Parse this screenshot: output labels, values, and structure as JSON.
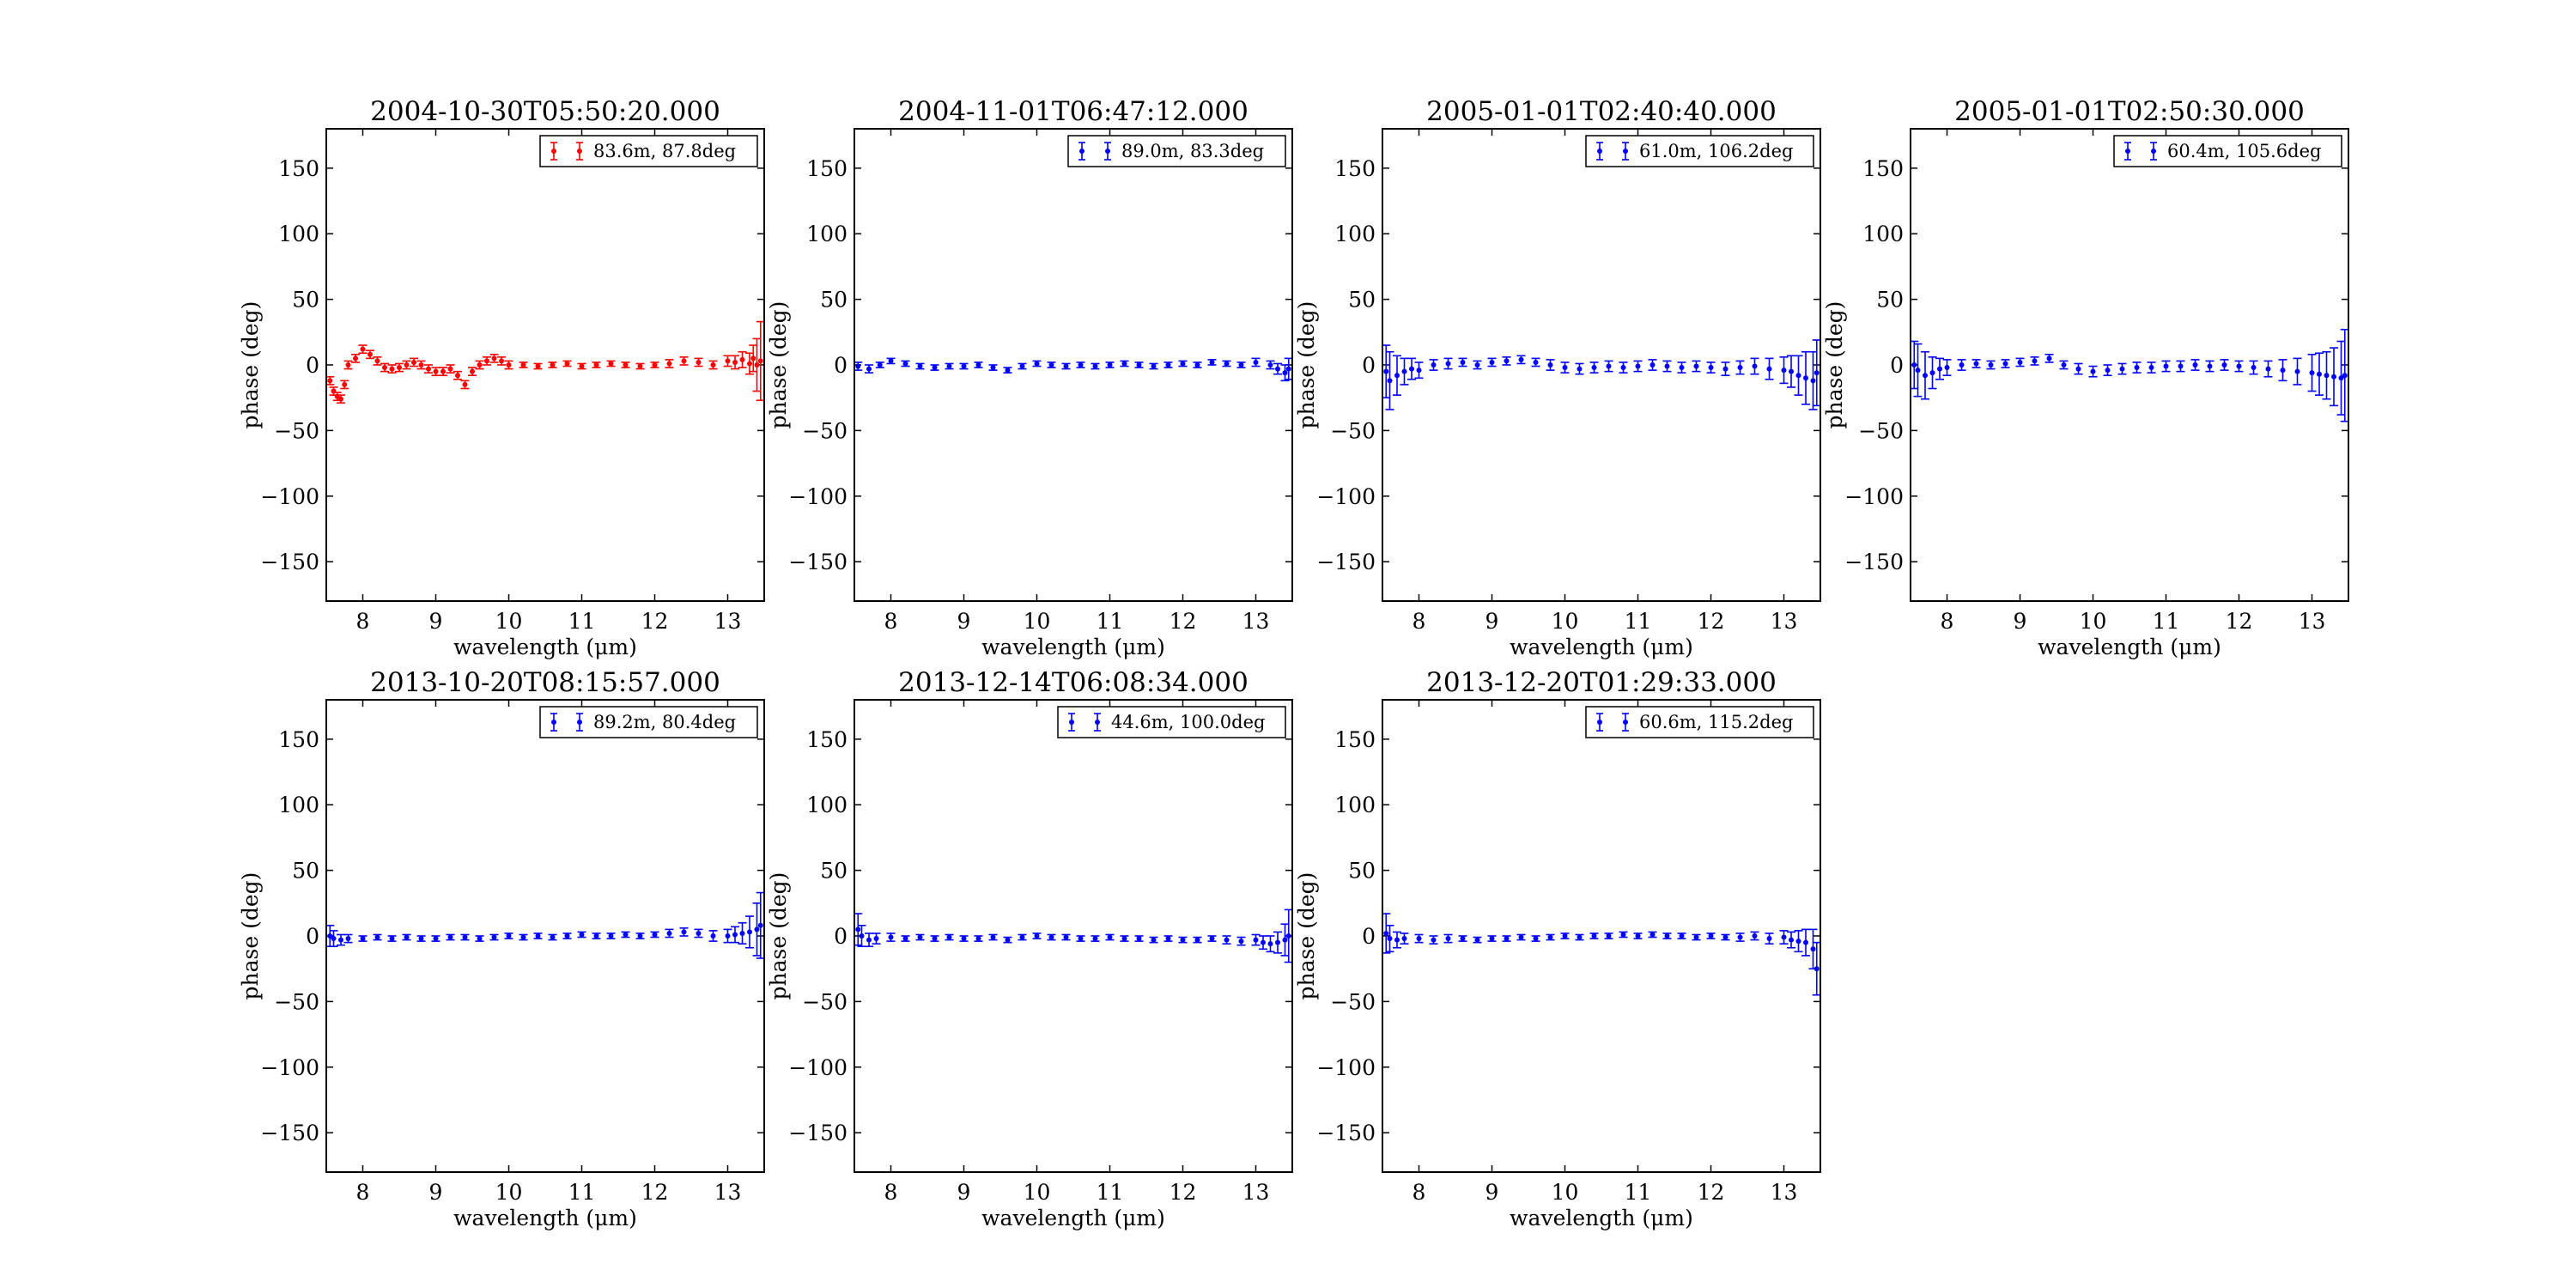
{
  "chart_data": [
    {
      "type": "scatter",
      "title": "2004-10-30T05:50:20.000",
      "xlabel": "wavelength (μm)",
      "ylabel": "phase (deg)",
      "xlim": [
        7.5,
        13.5
      ],
      "ylim": [
        -180,
        180
      ],
      "xticks": [
        8,
        9,
        10,
        11,
        12,
        13
      ],
      "yticks": [
        -150,
        -100,
        -50,
        0,
        50,
        100,
        150
      ],
      "legend_position": "top-right",
      "series": [
        {
          "name": "83.6m, 87.8deg",
          "color": "#ff0000",
          "x": [
            7.55,
            7.6,
            7.65,
            7.7,
            7.75,
            7.8,
            7.9,
            8.0,
            8.1,
            8.2,
            8.3,
            8.4,
            8.5,
            8.6,
            8.7,
            8.8,
            8.9,
            9.0,
            9.1,
            9.2,
            9.3,
            9.4,
            9.5,
            9.6,
            9.7,
            9.8,
            9.9,
            10.0,
            10.2,
            10.4,
            10.6,
            10.8,
            11.0,
            11.2,
            11.4,
            11.6,
            11.8,
            12.0,
            12.2,
            12.4,
            12.6,
            12.8,
            13.0,
            13.1,
            13.2,
            13.3,
            13.35,
            13.4,
            13.45
          ],
          "y": [
            -12,
            -20,
            -24,
            -26,
            -15,
            0,
            5,
            12,
            8,
            3,
            -2,
            -3,
            -2,
            0,
            2,
            0,
            -3,
            -5,
            -5,
            -3,
            -8,
            -15,
            -5,
            0,
            3,
            5,
            3,
            0,
            0,
            -1,
            0,
            1,
            -1,
            0,
            1,
            0,
            -1,
            0,
            1,
            3,
            2,
            0,
            3,
            2,
            4,
            1,
            5,
            0,
            3
          ],
          "err": [
            3,
            3,
            3,
            3,
            3,
            3,
            3,
            3,
            3,
            3,
            3,
            3,
            3,
            3,
            3,
            3,
            3,
            3,
            3,
            3,
            3,
            3,
            3,
            3,
            3,
            3,
            3,
            3,
            2,
            2,
            2,
            2,
            2,
            2,
            2,
            2,
            2,
            2,
            3,
            3,
            3,
            3,
            4,
            5,
            6,
            8,
            10,
            20,
            30
          ]
        }
      ]
    },
    {
      "type": "scatter",
      "title": "2004-11-01T06:47:12.000",
      "xlabel": "wavelength (μm)",
      "ylabel": "phase (deg)",
      "xlim": [
        7.5,
        13.5
      ],
      "ylim": [
        -180,
        180
      ],
      "xticks": [
        8,
        9,
        10,
        11,
        12,
        13
      ],
      "yticks": [
        -150,
        -100,
        -50,
        0,
        50,
        100,
        150
      ],
      "legend_position": "top-right",
      "series": [
        {
          "name": "89.0m, 83.3deg",
          "color": "#0000ff",
          "x": [
            7.55,
            7.7,
            7.85,
            8.0,
            8.2,
            8.4,
            8.6,
            8.8,
            9.0,
            9.2,
            9.4,
            9.6,
            9.8,
            10.0,
            10.2,
            10.4,
            10.6,
            10.8,
            11.0,
            11.2,
            11.4,
            11.6,
            11.8,
            12.0,
            12.2,
            12.4,
            12.6,
            12.8,
            13.0,
            13.2,
            13.3,
            13.4,
            13.45
          ],
          "y": [
            -1,
            -3,
            0,
            3,
            1,
            -1,
            -2,
            -1,
            -1,
            0,
            -2,
            -4,
            -1,
            1,
            0,
            -1,
            0,
            -1,
            0,
            1,
            0,
            -1,
            0,
            1,
            0,
            2,
            1,
            0,
            2,
            0,
            -3,
            -6,
            -3
          ],
          "err": [
            3,
            3,
            2,
            2,
            2,
            2,
            2,
            2,
            2,
            2,
            2,
            2,
            2,
            2,
            2,
            2,
            2,
            2,
            2,
            2,
            2,
            2,
            2,
            2,
            2,
            2,
            2,
            2,
            3,
            3,
            4,
            6,
            8
          ]
        }
      ]
    },
    {
      "type": "scatter",
      "title": "2005-01-01T02:40:40.000",
      "xlabel": "wavelength (μm)",
      "ylabel": "phase (deg)",
      "xlim": [
        7.5,
        13.5
      ],
      "ylim": [
        -180,
        180
      ],
      "xticks": [
        8,
        9,
        10,
        11,
        12,
        13
      ],
      "yticks": [
        -150,
        -100,
        -50,
        0,
        50,
        100,
        150
      ],
      "legend_position": "top-right",
      "series": [
        {
          "name": "61.0m, 106.2deg",
          "color": "#0000ff",
          "x": [
            7.55,
            7.6,
            7.7,
            7.8,
            7.9,
            8.0,
            8.2,
            8.4,
            8.6,
            8.8,
            9.0,
            9.2,
            9.4,
            9.6,
            9.8,
            10.0,
            10.2,
            10.4,
            10.6,
            10.8,
            11.0,
            11.2,
            11.4,
            11.6,
            11.8,
            12.0,
            12.2,
            12.4,
            12.6,
            12.8,
            13.0,
            13.1,
            13.2,
            13.3,
            13.4,
            13.45
          ],
          "y": [
            -5,
            -12,
            -8,
            -5,
            -3,
            -4,
            0,
            1,
            2,
            0,
            2,
            3,
            4,
            2,
            0,
            -2,
            -3,
            -2,
            -1,
            -2,
            -1,
            0,
            -1,
            -2,
            -1,
            -2,
            -3,
            -2,
            -1,
            -3,
            -4,
            -5,
            -8,
            -10,
            -12,
            -6
          ],
          "err": [
            20,
            22,
            15,
            10,
            8,
            6,
            4,
            4,
            3,
            3,
            3,
            3,
            3,
            3,
            4,
            4,
            4,
            4,
            4,
            4,
            4,
            4,
            4,
            4,
            4,
            4,
            5,
            5,
            6,
            8,
            10,
            12,
            15,
            20,
            22,
            25
          ]
        }
      ]
    },
    {
      "type": "scatter",
      "title": "2005-01-01T02:50:30.000",
      "xlabel": "wavelength (μm)",
      "ylabel": "phase (deg)",
      "xlim": [
        7.5,
        13.5
      ],
      "ylim": [
        -180,
        180
      ],
      "xticks": [
        8,
        9,
        10,
        11,
        12,
        13
      ],
      "yticks": [
        -150,
        -100,
        -50,
        0,
        50,
        100,
        150
      ],
      "legend_position": "top-right",
      "series": [
        {
          "name": "60.4m, 105.6deg",
          "color": "#0000ff",
          "x": [
            7.55,
            7.6,
            7.7,
            7.8,
            7.9,
            8.0,
            8.2,
            8.4,
            8.6,
            8.8,
            9.0,
            9.2,
            9.4,
            9.6,
            9.8,
            10.0,
            10.2,
            10.4,
            10.6,
            10.8,
            11.0,
            11.2,
            11.4,
            11.6,
            11.8,
            12.0,
            12.2,
            12.4,
            12.6,
            12.8,
            13.0,
            13.1,
            13.2,
            13.3,
            13.4,
            13.45
          ],
          "y": [
            0,
            -4,
            -8,
            -6,
            -3,
            -2,
            0,
            1,
            0,
            1,
            2,
            3,
            5,
            0,
            -3,
            -5,
            -4,
            -3,
            -2,
            -2,
            -1,
            -1,
            0,
            -1,
            0,
            -1,
            -2,
            -3,
            -4,
            -5,
            -6,
            -7,
            -8,
            -9,
            -10,
            -8
          ],
          "err": [
            18,
            20,
            18,
            12,
            8,
            6,
            4,
            3,
            3,
            3,
            3,
            3,
            3,
            3,
            4,
            4,
            4,
            4,
            4,
            4,
            4,
            4,
            4,
            4,
            4,
            4,
            5,
            6,
            8,
            10,
            14,
            16,
            18,
            22,
            28,
            35
          ]
        }
      ]
    },
    {
      "type": "scatter",
      "title": "2013-10-20T08:15:57.000",
      "xlabel": "wavelength (μm)",
      "ylabel": "phase (deg)",
      "xlim": [
        7.5,
        13.5
      ],
      "ylim": [
        -180,
        180
      ],
      "xticks": [
        8,
        9,
        10,
        11,
        12,
        13
      ],
      "yticks": [
        -150,
        -100,
        -50,
        0,
        50,
        100,
        150
      ],
      "legend_position": "top-right",
      "series": [
        {
          "name": "89.2m, 80.4deg",
          "color": "#0000ff",
          "x": [
            7.55,
            7.6,
            7.7,
            7.8,
            8.0,
            8.2,
            8.4,
            8.6,
            8.8,
            9.0,
            9.2,
            9.4,
            9.6,
            9.8,
            10.0,
            10.2,
            10.4,
            10.6,
            10.8,
            11.0,
            11.2,
            11.4,
            11.6,
            11.8,
            12.0,
            12.2,
            12.4,
            12.6,
            12.8,
            13.0,
            13.1,
            13.2,
            13.3,
            13.4,
            13.45
          ],
          "y": [
            0,
            -2,
            -3,
            -2,
            -2,
            -1,
            -2,
            -1,
            -2,
            -2,
            -1,
            -1,
            -2,
            -1,
            0,
            -1,
            0,
            -1,
            0,
            1,
            0,
            0,
            1,
            0,
            1,
            2,
            3,
            2,
            0,
            0,
            1,
            2,
            3,
            5,
            8
          ],
          "err": [
            8,
            6,
            4,
            3,
            2,
            2,
            2,
            2,
            2,
            2,
            2,
            2,
            2,
            2,
            2,
            2,
            2,
            2,
            2,
            2,
            2,
            2,
            2,
            2,
            2,
            3,
            3,
            3,
            4,
            5,
            6,
            8,
            12,
            20,
            25
          ]
        }
      ]
    },
    {
      "type": "scatter",
      "title": "2013-12-14T06:08:34.000",
      "xlabel": "wavelength (μm)",
      "ylabel": "phase (deg)",
      "xlim": [
        7.5,
        13.5
      ],
      "ylim": [
        -180,
        180
      ],
      "xticks": [
        8,
        9,
        10,
        11,
        12,
        13
      ],
      "yticks": [
        -150,
        -100,
        -50,
        0,
        50,
        100,
        150
      ],
      "legend_position": "top-right",
      "series": [
        {
          "name": "44.6m, 100.0deg",
          "color": "#0000ff",
          "x": [
            7.55,
            7.6,
            7.7,
            7.8,
            8.0,
            8.2,
            8.4,
            8.6,
            8.8,
            9.0,
            9.2,
            9.4,
            9.6,
            9.8,
            10.0,
            10.2,
            10.4,
            10.6,
            10.8,
            11.0,
            11.2,
            11.4,
            11.6,
            11.8,
            12.0,
            12.2,
            12.4,
            12.6,
            12.8,
            13.0,
            13.1,
            13.2,
            13.3,
            13.4,
            13.45
          ],
          "y": [
            5,
            0,
            -3,
            -2,
            -1,
            -2,
            -1,
            -2,
            -1,
            -2,
            -2,
            -1,
            -3,
            -1,
            0,
            -1,
            -1,
            -2,
            -2,
            -1,
            -2,
            -2,
            -3,
            -2,
            -3,
            -3,
            -2,
            -3,
            -4,
            -3,
            -5,
            -6,
            -5,
            -3,
            0
          ],
          "err": [
            12,
            8,
            5,
            4,
            3,
            2,
            2,
            2,
            2,
            2,
            2,
            2,
            2,
            2,
            2,
            2,
            2,
            2,
            2,
            2,
            2,
            2,
            2,
            2,
            2,
            2,
            2,
            3,
            3,
            4,
            5,
            6,
            8,
            12,
            20
          ]
        }
      ]
    },
    {
      "type": "scatter",
      "title": "2013-12-20T01:29:33.000",
      "xlabel": "wavelength (μm)",
      "ylabel": "phase (deg)",
      "xlim": [
        7.5,
        13.5
      ],
      "ylim": [
        -180,
        180
      ],
      "xticks": [
        8,
        9,
        10,
        11,
        12,
        13
      ],
      "yticks": [
        -150,
        -100,
        -50,
        0,
        50,
        100,
        150
      ],
      "legend_position": "top-right",
      "series": [
        {
          "name": "60.6m, 115.2deg",
          "color": "#0000ff",
          "x": [
            7.55,
            7.6,
            7.7,
            7.8,
            8.0,
            8.2,
            8.4,
            8.6,
            8.8,
            9.0,
            9.2,
            9.4,
            9.6,
            9.8,
            10.0,
            10.2,
            10.4,
            10.6,
            10.8,
            11.0,
            11.2,
            11.4,
            11.6,
            11.8,
            12.0,
            12.2,
            12.4,
            12.6,
            12.8,
            13.0,
            13.1,
            13.2,
            13.3,
            13.4,
            13.45
          ],
          "y": [
            2,
            -2,
            -3,
            -2,
            -2,
            -3,
            -2,
            -2,
            -3,
            -2,
            -2,
            -1,
            -2,
            -1,
            0,
            -1,
            0,
            0,
            1,
            0,
            1,
            0,
            0,
            -1,
            0,
            -1,
            -1,
            0,
            -2,
            -1,
            -3,
            -4,
            -5,
            -10,
            -25
          ],
          "err": [
            15,
            10,
            6,
            4,
            3,
            3,
            3,
            2,
            2,
            2,
            2,
            2,
            2,
            2,
            2,
            2,
            2,
            2,
            2,
            2,
            2,
            2,
            2,
            2,
            2,
            2,
            3,
            3,
            4,
            5,
            6,
            8,
            10,
            15,
            20
          ]
        }
      ]
    }
  ]
}
